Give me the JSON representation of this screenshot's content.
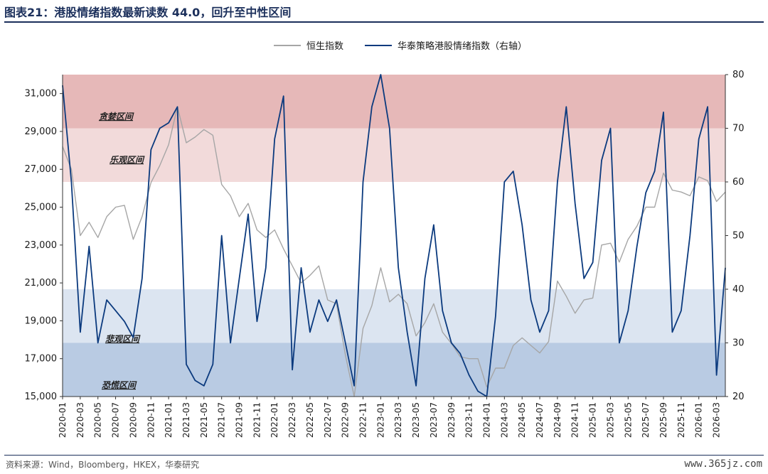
{
  "title": "图表21：港股情绪指数最新读数 44.0，回升至中性区间",
  "source": "资料来源：Wind，Bloomberg，HKEX，华泰研究",
  "watermark": "www.365jz.com",
  "chart_data": {
    "type": "line",
    "legend_position": "top-center",
    "legend": [
      {
        "name": "恒生指数",
        "color": "#a6a6a6"
      },
      {
        "name": "华泰策略港股情绪指数（右轴）",
        "color": "#0b3a7e"
      }
    ],
    "left_axis": {
      "ylim": [
        15000,
        32000
      ],
      "ticks": [
        "15,000",
        "17,000",
        "19,000",
        "21,000",
        "23,000",
        "25,000",
        "27,000",
        "29,000",
        "31,000"
      ]
    },
    "right_axis": {
      "ylim": [
        20,
        80
      ],
      "ticks": [
        "20",
        "30",
        "40",
        "50",
        "60",
        "70",
        "80"
      ]
    },
    "x_axis": {
      "start": "2020-01",
      "end": "2026-04",
      "ticks": [
        "2020-01",
        "2020-03",
        "2020-05",
        "2020-07",
        "2020-09",
        "2020-11",
        "2021-01",
        "2021-03",
        "2021-05",
        "2021-07",
        "2021-09",
        "2021-11",
        "2022-01",
        "2022-03",
        "2022-05",
        "2022-07",
        "2022-09",
        "2022-11",
        "2023-01",
        "2023-03",
        "2023-05",
        "2023-07",
        "2023-09",
        "2023-11",
        "2024-01",
        "2024-03",
        "2024-05",
        "2024-07",
        "2024-09",
        "2024-11",
        "2025-01",
        "2025-03",
        "2025-05",
        "2025-07",
        "2025-09",
        "2025-11",
        "2026-01",
        "2026-03"
      ]
    },
    "zones": [
      {
        "label": "贪婪区间",
        "range": [
          70,
          80
        ],
        "color": "#e6b8b8"
      },
      {
        "label": "乐观区间",
        "range": [
          60,
          70
        ],
        "color": "#f2dada"
      },
      {
        "label": "悲观区间",
        "range": [
          30,
          40
        ],
        "color": "#dce5f1"
      },
      {
        "label": "恐慌区间",
        "range": [
          20,
          30
        ],
        "color": "#b9cbe3"
      }
    ],
    "series": [
      {
        "name": "恒生指数",
        "axis": "left",
        "color": "#a6a6a6",
        "points": [
          [
            "2020-01",
            28200
          ],
          [
            "2020-02",
            27000
          ],
          [
            "2020-03",
            23500
          ],
          [
            "2020-04",
            24200
          ],
          [
            "2020-05",
            23400
          ],
          [
            "2020-06",
            24500
          ],
          [
            "2020-07",
            25000
          ],
          [
            "2020-08",
            25100
          ],
          [
            "2020-09",
            23300
          ],
          [
            "2020-10",
            24500
          ],
          [
            "2020-11",
            26300
          ],
          [
            "2020-12",
            27200
          ],
          [
            "2021-01",
            28300
          ],
          [
            "2021-02",
            30300
          ],
          [
            "2021-03",
            28400
          ],
          [
            "2021-04",
            28700
          ],
          [
            "2021-05",
            29100
          ],
          [
            "2021-06",
            28800
          ],
          [
            "2021-07",
            26200
          ],
          [
            "2021-08",
            25600
          ],
          [
            "2021-09",
            24500
          ],
          [
            "2021-10",
            25200
          ],
          [
            "2021-11",
            23800
          ],
          [
            "2021-12",
            23400
          ],
          [
            "2022-01",
            23800
          ],
          [
            "2022-02",
            22800
          ],
          [
            "2022-03",
            21900
          ],
          [
            "2022-04",
            21000
          ],
          [
            "2022-05",
            21400
          ],
          [
            "2022-06",
            21900
          ],
          [
            "2022-07",
            20100
          ],
          [
            "2022-08",
            19900
          ],
          [
            "2022-09",
            17200
          ],
          [
            "2022-10",
            14800
          ],
          [
            "2022-11",
            18600
          ],
          [
            "2022-12",
            19800
          ],
          [
            "2023-01",
            21800
          ],
          [
            "2023-02",
            20000
          ],
          [
            "2023-03",
            20400
          ],
          [
            "2023-04",
            19900
          ],
          [
            "2023-05",
            18200
          ],
          [
            "2023-06",
            18900
          ],
          [
            "2023-07",
            19900
          ],
          [
            "2023-08",
            18400
          ],
          [
            "2023-09",
            17800
          ],
          [
            "2023-10",
            17100
          ],
          [
            "2023-11",
            17000
          ],
          [
            "2023-12",
            17000
          ],
          [
            "2024-01",
            15500
          ],
          [
            "2024-02",
            16500
          ],
          [
            "2024-03",
            16500
          ],
          [
            "2024-04",
            17700
          ],
          [
            "2024-05",
            18100
          ],
          [
            "2024-06",
            17700
          ],
          [
            "2024-07",
            17300
          ],
          [
            "2024-08",
            17900
          ],
          [
            "2024-09",
            21100
          ],
          [
            "2024-10",
            20300
          ],
          [
            "2024-11",
            19400
          ],
          [
            "2024-12",
            20100
          ],
          [
            "2025-01",
            20200
          ],
          [
            "2025-02",
            23000
          ],
          [
            "2025-03",
            23100
          ],
          [
            "2025-04",
            22100
          ],
          [
            "2025-05",
            23300
          ],
          [
            "2025-06",
            24000
          ],
          [
            "2025-07",
            25000
          ],
          [
            "2025-08",
            25000
          ],
          [
            "2025-09",
            26800
          ],
          [
            "2025-10",
            25900
          ],
          [
            "2025-11",
            25800
          ],
          [
            "2025-12",
            25600
          ],
          [
            "2026-01",
            26600
          ],
          [
            "2026-02",
            26400
          ],
          [
            "2026-03",
            25300
          ],
          [
            "2026-04",
            25800
          ]
        ]
      },
      {
        "name": "华泰策略港股情绪指数（右轴）",
        "axis": "right",
        "color": "#0b3a7e",
        "points": [
          [
            "2020-01",
            78
          ],
          [
            "2020-02",
            60
          ],
          [
            "2020-03",
            32
          ],
          [
            "2020-04",
            48
          ],
          [
            "2020-05",
            30
          ],
          [
            "2020-06",
            38
          ],
          [
            "2020-07",
            36
          ],
          [
            "2020-08",
            34
          ],
          [
            "2020-09",
            31
          ],
          [
            "2020-10",
            42
          ],
          [
            "2020-11",
            66
          ],
          [
            "2020-12",
            70
          ],
          [
            "2021-01",
            71
          ],
          [
            "2021-02",
            74
          ],
          [
            "2021-03",
            26
          ],
          [
            "2021-04",
            23
          ],
          [
            "2021-05",
            22
          ],
          [
            "2021-06",
            26
          ],
          [
            "2021-07",
            50
          ],
          [
            "2021-08",
            30
          ],
          [
            "2021-09",
            42
          ],
          [
            "2021-10",
            54
          ],
          [
            "2021-11",
            34
          ],
          [
            "2021-12",
            44
          ],
          [
            "2022-01",
            68
          ],
          [
            "2022-02",
            76
          ],
          [
            "2022-03",
            25
          ],
          [
            "2022-04",
            44
          ],
          [
            "2022-05",
            32
          ],
          [
            "2022-06",
            38
          ],
          [
            "2022-07",
            34
          ],
          [
            "2022-08",
            38
          ],
          [
            "2022-09",
            30
          ],
          [
            "2022-10",
            22
          ],
          [
            "2022-11",
            60
          ],
          [
            "2022-12",
            74
          ],
          [
            "2023-01",
            80
          ],
          [
            "2023-02",
            70
          ],
          [
            "2023-03",
            44
          ],
          [
            "2023-04",
            32
          ],
          [
            "2023-05",
            22
          ],
          [
            "2023-06",
            42
          ],
          [
            "2023-07",
            52
          ],
          [
            "2023-08",
            36
          ],
          [
            "2023-09",
            30
          ],
          [
            "2023-10",
            28
          ],
          [
            "2023-11",
            24
          ],
          [
            "2023-12",
            21
          ],
          [
            "2024-01",
            18
          ],
          [
            "2024-02",
            35
          ],
          [
            "2024-03",
            60
          ],
          [
            "2024-04",
            62
          ],
          [
            "2024-05",
            52
          ],
          [
            "2024-06",
            38
          ],
          [
            "2024-07",
            32
          ],
          [
            "2024-08",
            36
          ],
          [
            "2024-09",
            60
          ],
          [
            "2024-10",
            74
          ],
          [
            "2024-11",
            56
          ],
          [
            "2024-12",
            42
          ],
          [
            "2025-01",
            45
          ],
          [
            "2025-02",
            64
          ],
          [
            "2025-03",
            70
          ],
          [
            "2025-04",
            30
          ],
          [
            "2025-05",
            36
          ],
          [
            "2025-06",
            48
          ],
          [
            "2025-07",
            58
          ],
          [
            "2025-08",
            62
          ],
          [
            "2025-09",
            73
          ],
          [
            "2025-10",
            32
          ],
          [
            "2025-11",
            36
          ],
          [
            "2025-12",
            50
          ],
          [
            "2026-01",
            68
          ],
          [
            "2026-02",
            74
          ],
          [
            "2026-03",
            24
          ],
          [
            "2026-04",
            44
          ]
        ]
      }
    ]
  }
}
